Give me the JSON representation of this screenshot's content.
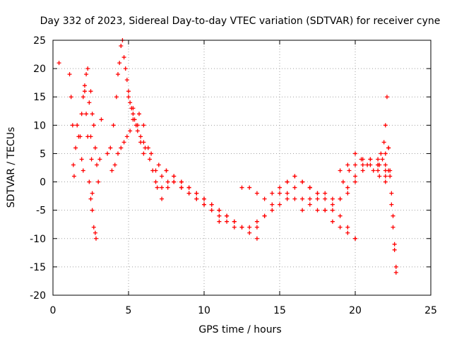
{
  "chart_data": {
    "type": "scatter",
    "title": "Day 332 of 2023, Sidereal Day-to-day VTEC variation (SDTVAR) for receiver cyne",
    "xlabel": "GPS time / hours",
    "ylabel": "SDTVAR / TECUs",
    "xlim": [
      0,
      25
    ],
    "ylim": [
      -20,
      25
    ],
    "xticks": [
      0,
      5,
      10,
      15,
      20,
      25
    ],
    "yticks": [
      -20,
      -15,
      -10,
      -5,
      0,
      5,
      10,
      15,
      20,
      25
    ],
    "xtick_labels": [
      "0",
      "5",
      "10",
      "15",
      "20",
      "25"
    ],
    "ytick_labels": [
      "-20",
      "-15",
      "-10",
      "-5",
      "0",
      "5",
      "10",
      "15",
      "20",
      "25"
    ],
    "grid": true,
    "marker": "+",
    "color": "#ff0000",
    "series": [
      {
        "name": "s1",
        "x": [
          0.4
        ],
        "y": [
          21.0
        ]
      },
      {
        "name": "s2",
        "x": [
          1.1,
          1.2,
          1.3,
          1.35,
          1.4,
          1.5,
          1.6,
          1.7,
          1.9,
          2.0,
          2.1,
          2.2,
          2.3,
          2.4,
          2.5,
          2.6,
          2.7,
          2.8,
          2.85
        ],
        "y": [
          19,
          15,
          10,
          3,
          1,
          6,
          10,
          8,
          4,
          2,
          16,
          12,
          8,
          0,
          -3,
          -5,
          -8,
          -9,
          -10
        ]
      },
      {
        "name": "s3",
        "x": [
          1.8,
          1.9,
          2.0,
          2.1,
          2.2,
          2.3,
          2.4,
          2.5,
          2.55,
          2.6
        ],
        "y": [
          8,
          12,
          15,
          17,
          19,
          20,
          14,
          8,
          4,
          -2
        ]
      },
      {
        "name": "s4",
        "x": [
          2.5,
          2.6,
          2.7,
          2.8,
          2.9,
          3.0,
          3.1,
          3.2
        ],
        "y": [
          16,
          12,
          10,
          6,
          3,
          0,
          4,
          11
        ]
      },
      {
        "name": "s5",
        "x": [
          3.6,
          3.8,
          4.0,
          4.2,
          4.3,
          4.4,
          4.5,
          4.6,
          4.7,
          4.8,
          4.9,
          5.0,
          5.1,
          5.2,
          5.3,
          5.4,
          5.6,
          5.8,
          6.0
        ],
        "y": [
          5,
          6,
          10,
          15,
          19,
          21,
          24,
          25,
          22,
          20,
          18,
          16,
          14,
          13,
          12,
          11,
          9,
          7,
          5
        ]
      },
      {
        "name": "s6",
        "x": [
          3.9,
          4.1,
          4.3,
          4.5,
          4.7,
          4.9,
          5.1,
          5.3,
          5.5,
          5.8,
          6.1,
          6.5,
          7.0,
          7.5,
          8.0,
          8.5,
          9.0,
          9.5,
          10.0,
          10.5,
          11.0,
          11.5,
          12.0,
          12.5,
          13.0,
          13.5
        ],
        "y": [
          2,
          3,
          5,
          6,
          7,
          8,
          9,
          11,
          10,
          8,
          6,
          5,
          3,
          2,
          1,
          0,
          -1,
          -2,
          -3,
          -4,
          -5,
          -6,
          -7,
          -8,
          -9,
          -10
        ]
      },
      {
        "name": "s7",
        "x": [
          5.0,
          5.3,
          5.6,
          6.0,
          6.4,
          6.8,
          7.2,
          7.6,
          8.0,
          8.5,
          9.0,
          9.5,
          10.0,
          10.5,
          11.0
        ],
        "y": [
          15,
          13,
          10,
          7,
          4,
          2,
          1,
          0,
          0,
          -1,
          -2,
          -3,
          -4,
          -5,
          -7
        ]
      },
      {
        "name": "s8",
        "x": [
          5.7,
          6.0,
          6.3,
          6.6,
          6.9,
          7.2
        ],
        "y": [
          12,
          10,
          6,
          2,
          -1,
          -3
        ]
      },
      {
        "name": "s9",
        "x": [
          6.8,
          7.2,
          7.6,
          8.0,
          8.5,
          9.0,
          9.5,
          10.0
        ],
        "y": [
          0,
          -1,
          -1,
          0,
          -1,
          -2,
          -3,
          -4
        ]
      },
      {
        "name": "s10",
        "x": [
          7.5,
          8.0,
          8.5,
          9.0,
          9.5,
          10.0,
          10.5,
          11.0,
          11.5,
          12.0
        ],
        "y": [
          2,
          1,
          0,
          -1,
          -2,
          -3,
          -4,
          -6,
          -7,
          -8
        ]
      },
      {
        "name": "s11",
        "x": [
          11.0,
          11.5,
          12.0,
          12.5,
          13.0,
          13.5,
          14.0,
          14.5,
          15.0,
          15.5,
          16.0
        ],
        "y": [
          -5,
          -6,
          -7,
          -8,
          -8,
          -8,
          -6,
          -4,
          -2,
          0,
          1
        ]
      },
      {
        "name": "s12",
        "x": [
          12.5,
          13.0,
          13.5,
          14.0,
          14.5,
          15.0,
          15.5,
          16.0,
          16.5,
          17.0
        ],
        "y": [
          -1,
          -1,
          -2,
          -3,
          -2,
          -1,
          -2,
          -3,
          -3,
          -1
        ]
      },
      {
        "name": "s13",
        "x": [
          13.5,
          14.0,
          14.5,
          15.0,
          15.5,
          16.0,
          16.5,
          17.0,
          17.5,
          18.0,
          18.5,
          19.0,
          19.5,
          20.0
        ],
        "y": [
          -7,
          -6,
          -5,
          -4,
          -3,
          -1,
          0,
          -1,
          -3,
          -5,
          -7,
          -8,
          -9,
          -10
        ]
      },
      {
        "name": "s14",
        "x": [
          15.5,
          16.0,
          16.5,
          17.0,
          17.5,
          18.0,
          18.5,
          19.0,
          19.5,
          20.0
        ],
        "y": [
          0,
          1,
          0,
          -1,
          -2,
          -3,
          -5,
          -6,
          -8,
          -10
        ]
      },
      {
        "name": "s15",
        "x": [
          16.5,
          17.0,
          17.5,
          18.0,
          18.5,
          19.0,
          19.5,
          20.0,
          20.5,
          21.0,
          21.5,
          22.0
        ],
        "y": [
          -5,
          -3,
          -2,
          -2,
          -3,
          -3,
          -2,
          0,
          2,
          3,
          2,
          1
        ]
      },
      {
        "name": "s16",
        "x": [
          17.0,
          17.5,
          18.0,
          18.5,
          19.0,
          19.5,
          20.0,
          20.5,
          21.0,
          21.5,
          22.0
        ],
        "y": [
          -4,
          -5,
          -5,
          -4,
          -3,
          -1,
          1,
          3,
          4,
          3,
          2
        ]
      },
      {
        "name": "s17",
        "x": [
          19.0,
          19.5,
          20.0,
          20.5,
          21.0,
          21.5,
          22.0,
          22.2
        ],
        "y": [
          2,
          3,
          5,
          4,
          4,
          3,
          3,
          2
        ]
      },
      {
        "name": "s18",
        "x": [
          19.2,
          19.6,
          20.0,
          20.4,
          20.8,
          21.2,
          21.6,
          22.0
        ],
        "y": [
          0,
          2,
          3,
          4,
          3,
          2,
          1,
          0
        ]
      },
      {
        "name": "s19",
        "x": [
          21.5,
          21.7,
          21.9,
          22.0,
          22.1,
          22.2,
          22.3,
          22.4,
          22.5,
          22.6,
          22.7
        ],
        "y": [
          4,
          5,
          7,
          10,
          15,
          6,
          1,
          -4,
          -8,
          -12,
          -15
        ]
      },
      {
        "name": "s20",
        "x": [
          21.6,
          21.8,
          22.0,
          22.2,
          22.3,
          22.4,
          22.5,
          22.6,
          22.7
        ],
        "y": [
          3,
          4,
          5,
          6,
          2,
          -2,
          -6,
          -11,
          -16
        ]
      }
    ]
  }
}
